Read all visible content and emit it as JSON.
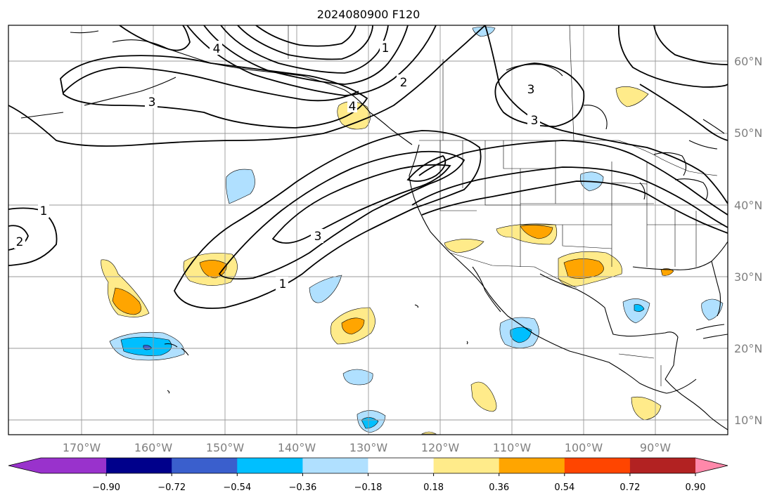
{
  "title": "2024080900 F120",
  "lat_labels": [
    "60°N",
    "50°N",
    "40°N",
    "30°N",
    "20°N",
    "10°N"
  ],
  "lon_labels": [
    "170°W",
    "160°W",
    "150°W",
    "140°W",
    "130°W",
    "120°W",
    "110°W",
    "100°W",
    "90°W"
  ],
  "contour_labels": [
    "3",
    "2",
    "3",
    "4",
    "1",
    "3",
    "1",
    "1",
    "2",
    "4",
    "3"
  ],
  "colorbar": {
    "ticks": [
      "−0.90",
      "−0.72",
      "−0.54",
      "−0.36",
      "−0.18",
      "0.18",
      "0.36",
      "0.54",
      "0.72",
      "0.90"
    ],
    "colors": [
      "#9932cc",
      "#00008b",
      "#3a5fcd",
      "#00bfff",
      "#b0e0ff",
      "#ffffff",
      "#ffeb8a",
      "#ffa500",
      "#ff4500",
      "#b22222",
      "#ff88aa",
      "#ff88aa"
    ]
  },
  "anomaly_colors": {
    "neg_strong": "#3a5fcd",
    "neg_mid": "#00bfff",
    "neg_weak": "#b0e0ff",
    "pos_weak": "#ffeb8a",
    "pos_mid": "#ffa500"
  }
}
